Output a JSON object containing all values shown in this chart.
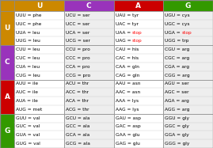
{
  "col_headers": [
    "U",
    "C",
    "A",
    "G"
  ],
  "row_headers": [
    "U",
    "C",
    "A",
    "G"
  ],
  "col_header_colors": [
    "#CC8800",
    "#9933BB",
    "#CC0000",
    "#339900"
  ],
  "row_header_colors": [
    "#CC8800",
    "#9933BB",
    "#CC0000",
    "#339900"
  ],
  "corner_color": "#CC8800",
  "header_text_color": "#FFFFFF",
  "bg_even": "#FFFFFF",
  "bg_odd": "#EEEEEE",
  "grid_color": "#AAAAAA",
  "cells": [
    [
      [
        "UUU = phe",
        "UUC = phe",
        "UUA = leu",
        "UUG = leu"
      ],
      [
        "UCU = ser",
        "UCC = ser",
        "UCA = ser",
        "UCG = ser"
      ],
      [
        "UAU = tyr",
        "UAC = tyr",
        "UAA = stop",
        "UAG = stop"
      ],
      [
        "UGU = cys",
        "UGC = cys",
        "UGA = stop",
        "UGG = trp"
      ]
    ],
    [
      [
        "CUU = leu",
        "CUC = leu",
        "CUA = leu",
        "CUG = leu"
      ],
      [
        "CCU = pro",
        "CCC = pro",
        "CCA = pro",
        "CCG = pro"
      ],
      [
        "CAU = his",
        "CAC = his",
        "CAA = gln",
        "CAG = gln"
      ],
      [
        "CGU = arg",
        "CGC = arg",
        "CGA = arg",
        "CGG = arg"
      ]
    ],
    [
      [
        "AUU = ile",
        "AUC = ile",
        "AUA = ile",
        "AUG = met"
      ],
      [
        "ACU = thr",
        "ACC = thr",
        "ACA = thr",
        "ACG = thr"
      ],
      [
        "AAU = asn",
        "AAC = asn",
        "AAA = lys",
        "AAG = lys"
      ],
      [
        "AGU = ser",
        "AGC = ser",
        "AGA = arg",
        "AGG = arg"
      ]
    ],
    [
      [
        "GUU = val",
        "GUC = val",
        "GUA = val",
        "GUG = val"
      ],
      [
        "GCU = ala",
        "GCC = ala",
        "GCA = ala",
        "GCG = ala"
      ],
      [
        "GAU = asp",
        "GAC = asp",
        "GAA = glu",
        "GAG = glu"
      ],
      [
        "GGU = gly",
        "GGC = gly",
        "GGA = gly",
        "GGG = gly"
      ]
    ]
  ],
  "stop_color": "#FF0000",
  "normal_text_color": "#000000",
  "cell_font_size": 4.2,
  "header_font_size": 6.5,
  "row_header_font_size": 6.5
}
